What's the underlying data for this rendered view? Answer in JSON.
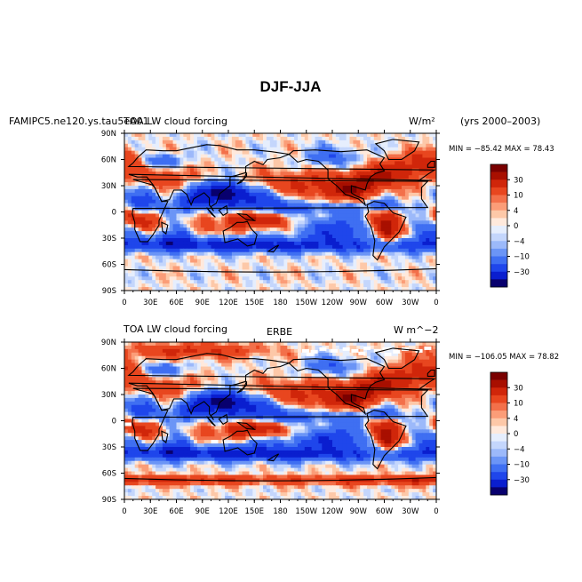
{
  "figure": {
    "title": "DJF-JJA"
  },
  "palette": [
    "#08006e",
    "#0a1ecf",
    "#1f46eb",
    "#3f6ff2",
    "#6b95f6",
    "#9cb9fa",
    "#c4d6fc",
    "#e6eefd",
    "#ffe9dc",
    "#fdc8a8",
    "#fb9d78",
    "#f3704a",
    "#e8461f",
    "#d0260a",
    "#a80f00",
    "#7a0000"
  ],
  "colorbar_labels": [
    "30",
    "10",
    "4",
    "0",
    "−4",
    "−10",
    "−30"
  ],
  "lon_ticks": [
    "0",
    "30E",
    "60E",
    "90E",
    "120E",
    "150E",
    "180",
    "150W",
    "120W",
    "90W",
    "60W",
    "30W",
    "0"
  ],
  "lat_ticks": [
    "90N",
    "60N",
    "30N",
    "0",
    "30S",
    "60S",
    "90S"
  ],
  "panels": [
    {
      "id": "model",
      "left_label": "FAMIPC5.ne120.ys.tau5eA01",
      "center_label": "TOA LW cloud forcing",
      "units": "W/m²",
      "period": "(yrs 2000–2003)",
      "stats": "MIN = −85.42 MAX =  78.43"
    },
    {
      "id": "obs",
      "left_label": "TOA LW cloud forcing",
      "center_label": "ERBE",
      "units": "W m^−2",
      "stats": "MIN = −106.05 MAX =  78.82"
    }
  ]
}
